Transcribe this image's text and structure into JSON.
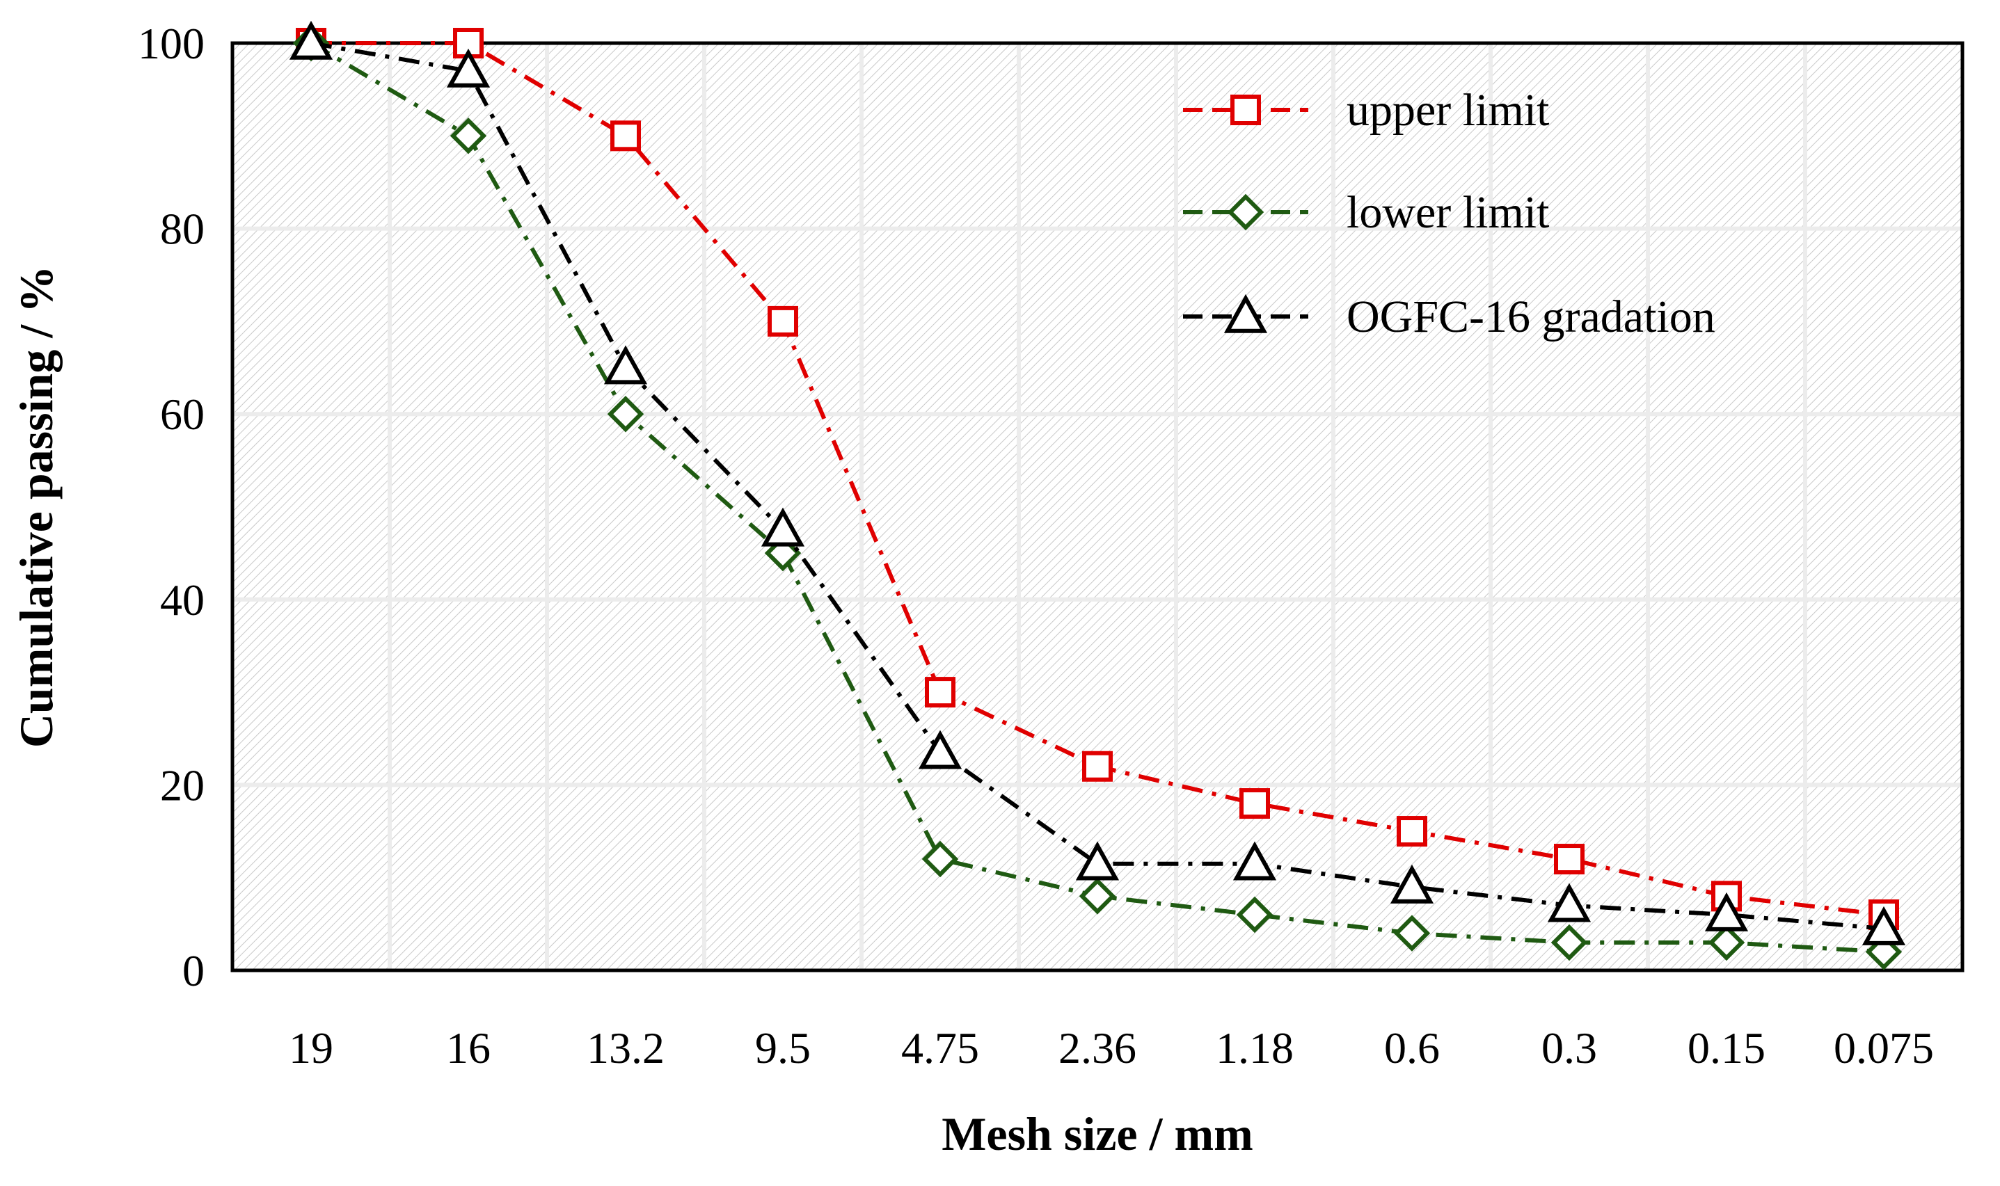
{
  "chart_data": {
    "type": "line",
    "title": "",
    "xlabel": "Mesh size / mm",
    "ylabel": "Cumulative passing / %",
    "categories": [
      "19",
      "16",
      "13.2",
      "9.5",
      "4.75",
      "2.36",
      "1.18",
      "0.6",
      "0.3",
      "0.15",
      "0.075"
    ],
    "ylim": [
      0,
      100
    ],
    "yticks": [
      0,
      20,
      40,
      60,
      80,
      100
    ],
    "grid": true,
    "legend_position": "top-right",
    "series": [
      {
        "name": "upper limit",
        "color": "#e00000",
        "marker": "square",
        "line_style": "dash-dot",
        "values": [
          100,
          100,
          90,
          70,
          30,
          22,
          18,
          15,
          12,
          8,
          6
        ]
      },
      {
        "name": "lower limit",
        "color": "#1f5a12",
        "marker": "diamond",
        "line_style": "dash-dot",
        "values": [
          100,
          90,
          60,
          45,
          12,
          8,
          6,
          4,
          3,
          3,
          2
        ]
      },
      {
        "name": "OGFC-16 gradation",
        "color": "#000000",
        "marker": "triangle",
        "line_style": "dash-dot",
        "values": [
          100,
          97,
          65,
          47.5,
          23.5,
          11.5,
          11.5,
          9,
          7,
          6,
          4.5
        ]
      }
    ]
  }
}
